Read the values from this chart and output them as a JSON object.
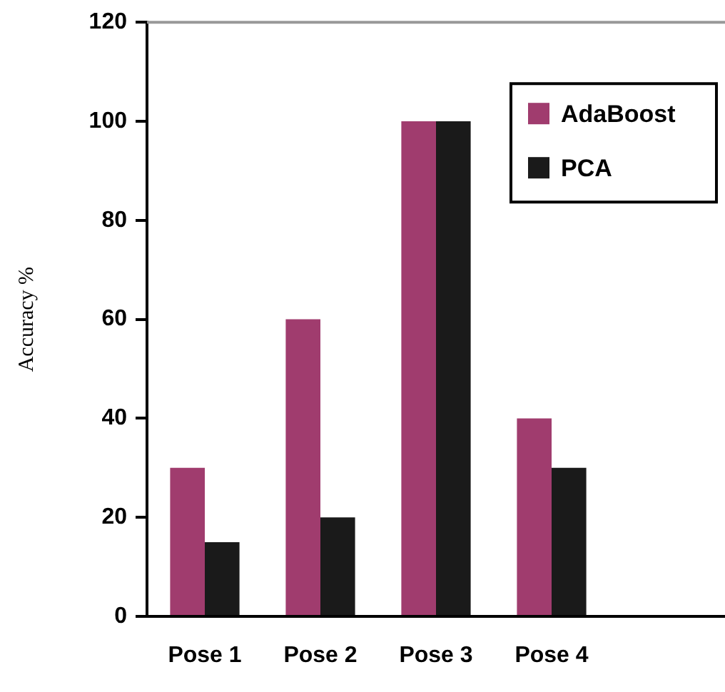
{
  "chart_data": {
    "type": "bar",
    "ylabel": "Accuracy %",
    "categories": [
      "Pose 1",
      "Pose 2",
      "Pose 3",
      "Pose 4",
      null
    ],
    "series": [
      {
        "name": "AdaBoost",
        "color": "#a03c6e",
        "values": [
          30,
          60,
          100,
          40,
          null
        ]
      },
      {
        "name": "PCA",
        "color": "#1a1a1a",
        "values": [
          15,
          20,
          100,
          30,
          null
        ]
      }
    ],
    "ylim": [
      0,
      120
    ],
    "yticks": [
      0,
      20,
      40,
      60,
      80,
      100,
      120
    ],
    "grid": false,
    "legend": "top right"
  }
}
